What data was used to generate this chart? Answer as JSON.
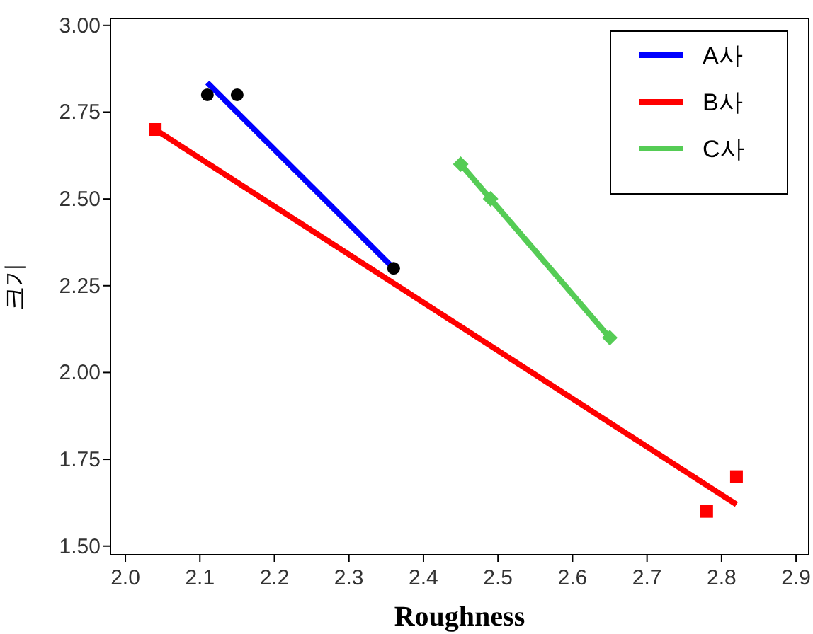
{
  "chart_data": {
    "type": "scatter",
    "xlabel": "Roughness",
    "ylabel": "크기",
    "xlim": [
      1.98,
      2.917
    ],
    "ylim": [
      1.475,
      3.02
    ],
    "xticks": [
      {
        "value": 2.0,
        "label": "2.0"
      },
      {
        "value": 2.1,
        "label": "2.1"
      },
      {
        "value": 2.2,
        "label": "2.2"
      },
      {
        "value": 2.3,
        "label": "2.3"
      },
      {
        "value": 2.4,
        "label": "2.4"
      },
      {
        "value": 2.5,
        "label": "2.5"
      },
      {
        "value": 2.6,
        "label": "2.6"
      },
      {
        "value": 2.7,
        "label": "2.7"
      },
      {
        "value": 2.8,
        "label": "2.8"
      },
      {
        "value": 2.9,
        "label": "2.9"
      }
    ],
    "yticks": [
      {
        "value": 1.5,
        "label": "1.50"
      },
      {
        "value": 1.75,
        "label": "1.75"
      },
      {
        "value": 2.0,
        "label": "2.00"
      },
      {
        "value": 2.25,
        "label": "2.25"
      },
      {
        "value": 2.5,
        "label": "2.50"
      },
      {
        "value": 2.75,
        "label": "2.75"
      },
      {
        "value": 3.0,
        "label": "3.00"
      }
    ],
    "legend": "top right",
    "grid": false,
    "series": [
      {
        "name": "A사",
        "type": "line",
        "color": "#0000ff",
        "x": [
          2.11,
          2.36
        ],
        "values": [
          2.835,
          2.3
        ]
      },
      {
        "name": "B사",
        "type": "line",
        "color": "#ff0000",
        "x": [
          2.04,
          2.82
        ],
        "values": [
          2.7,
          1.62
        ]
      },
      {
        "name": "C사",
        "type": "line",
        "color": "#55cc55",
        "x": [
          2.45,
          2.65
        ],
        "values": [
          2.6,
          2.1
        ]
      },
      {
        "color": "#000000",
        "marker": "circle",
        "x": [
          2.11,
          2.15,
          2.36
        ],
        "values": [
          2.8,
          2.8,
          2.3
        ]
      },
      {
        "color": "#ff0000",
        "marker": "square",
        "x": [
          2.04,
          2.78,
          2.82
        ],
        "values": [
          2.7,
          1.6,
          1.7
        ]
      },
      {
        "color": "#55cc55",
        "marker": "diamond",
        "x": [
          2.45,
          2.49,
          2.65
        ],
        "values": [
          2.6,
          2.5,
          2.1
        ]
      }
    ]
  }
}
